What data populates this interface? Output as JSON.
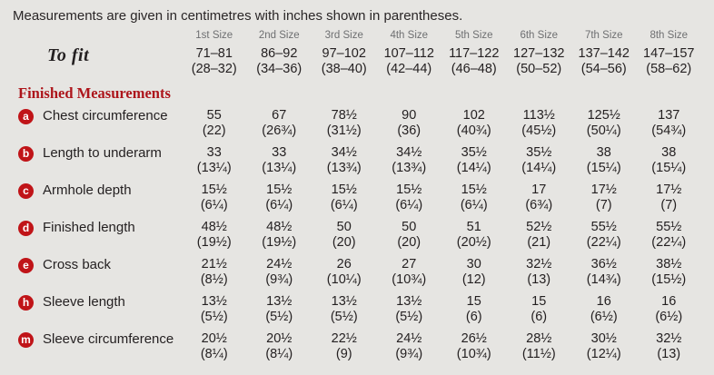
{
  "intro": "Measurements are given in centimetres with inches shown in parentheses.",
  "size_headers": [
    "1st Size",
    "2nd Size",
    "3rd Size",
    "4th Size",
    "5th Size",
    "6th Size",
    "7th Size",
    "8th Size"
  ],
  "to_fit": {
    "label": "To fit",
    "cm": [
      "71–81",
      "86–92",
      "97–102",
      "107–112",
      "117–122",
      "127–132",
      "137–142",
      "147–157"
    ],
    "inches": [
      "(28–32)",
      "(34–36)",
      "(38–40)",
      "(42–44)",
      "(46–48)",
      "(50–52)",
      "(54–56)",
      "(58–62)"
    ]
  },
  "section_title": "Finished Measurements",
  "rows": [
    {
      "badge": "a",
      "label": "Chest circumference",
      "cm": [
        "55",
        "67",
        "78½",
        "90",
        "102",
        "113½",
        "125½",
        "137"
      ],
      "inches": [
        "(22)",
        "(26¾)",
        "(31½)",
        "(36)",
        "(40¾)",
        "(45½)",
        "(50¼)",
        "(54¾)"
      ]
    },
    {
      "badge": "b",
      "label": "Length to underarm",
      "cm": [
        "33",
        "33",
        "34½",
        "34½",
        "35½",
        "35½",
        "38",
        "38"
      ],
      "inches": [
        "(13¼)",
        "(13¼)",
        "(13¾)",
        "(13¾)",
        "(14¼)",
        "(14¼)",
        "(15¼)",
        "(15¼)"
      ]
    },
    {
      "badge": "c",
      "label": "Armhole depth",
      "cm": [
        "15½",
        "15½",
        "15½",
        "15½",
        "15½",
        "17",
        "17½",
        "17½"
      ],
      "inches": [
        "(6¼)",
        "(6¼)",
        "(6¼)",
        "(6¼)",
        "(6¼)",
        "(6¾)",
        "(7)",
        "(7)"
      ]
    },
    {
      "badge": "d",
      "label": "Finished length",
      "cm": [
        "48½",
        "48½",
        "50",
        "50",
        "51",
        "52½",
        "55½",
        "55½"
      ],
      "inches": [
        "(19½)",
        "(19½)",
        "(20)",
        "(20)",
        "(20½)",
        "(21)",
        "(22¼)",
        "(22¼)"
      ]
    },
    {
      "badge": "e",
      "label": "Cross back",
      "cm": [
        "21½",
        "24½",
        "26",
        "27",
        "30",
        "32½",
        "36½",
        "38½"
      ],
      "inches": [
        "(8½)",
        "(9¾)",
        "(10¼)",
        "(10¾)",
        "(12)",
        "(13)",
        "(14¾)",
        "(15½)"
      ]
    },
    {
      "badge": "h",
      "label": "Sleeve length",
      "cm": [
        "13½",
        "13½",
        "13½",
        "13½",
        "15",
        "15",
        "16",
        "16"
      ],
      "inches": [
        "(5½)",
        "(5½)",
        "(5½)",
        "(5½)",
        "(6)",
        "(6)",
        "(6½)",
        "(6½)"
      ]
    },
    {
      "badge": "m",
      "label": "Sleeve circumference",
      "cm": [
        "20½",
        "20½",
        "22½",
        "24½",
        "26½",
        "28½",
        "30½",
        "32½"
      ],
      "inches": [
        "(8¼)",
        "(8¼)",
        "(9)",
        "(9¾)",
        "(10¾)",
        "(11½)",
        "(12¼)",
        "(13)"
      ]
    }
  ],
  "colors": {
    "background": "#e6e5e2",
    "accent_red_heading": "#ad151b",
    "badge_red": "#c01418",
    "size_header_gray": "#6e6f71",
    "text": "#231f20"
  }
}
